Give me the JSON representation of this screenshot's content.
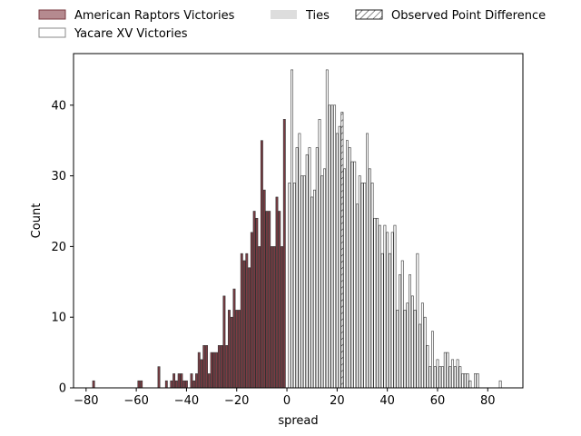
{
  "chart_data": {
    "type": "bar",
    "xlabel": "spread",
    "ylabel": "Count",
    "xlim": [
      -85,
      94
    ],
    "ylim": [
      0,
      47.3
    ],
    "xticks": [
      -80,
      -60,
      -40,
      -20,
      0,
      20,
      40,
      60,
      80
    ],
    "yticks": [
      0,
      10,
      20,
      30,
      40
    ],
    "grid": false,
    "legend_position": "top",
    "colors": {
      "raptors_fill": "#7a3b42",
      "raptors_legend": "#b58a8f",
      "yacare_fill": "#ffffff",
      "bar_edge": "#333333",
      "ties": "#dddddd",
      "observed_edge": "#222222"
    },
    "legend": [
      {
        "label": "American Raptors Victories",
        "style": "raptors"
      },
      {
        "label": "Yacare XV Victories",
        "style": "yacare"
      },
      {
        "label": "Ties",
        "style": "ties"
      },
      {
        "label": "Observed Point Difference",
        "style": "observed"
      }
    ],
    "series": [
      {
        "name": "American Raptors Victories",
        "x": [
          -77,
          -59,
          -58,
          -51,
          -48,
          -46,
          -45,
          -44,
          -43,
          -42,
          -41,
          -40,
          -39,
          -38,
          -37,
          -36,
          -35,
          -34,
          -33,
          -32,
          -31,
          -30,
          -29,
          -28,
          -27,
          -26,
          -25,
          -24,
          -23,
          -22,
          -21,
          -20,
          -19,
          -18,
          -17,
          -16,
          -15,
          -14,
          -13,
          -12,
          -11,
          -10,
          -9,
          -8,
          -7,
          -6,
          -5,
          -4,
          -3,
          -2,
          -1
        ],
        "values": [
          1,
          1,
          1,
          3,
          1,
          1,
          2,
          1,
          2,
          2,
          1,
          1,
          0,
          2,
          1,
          2,
          5,
          4,
          6,
          6,
          2,
          5,
          5,
          5,
          6,
          6,
          13,
          6,
          11,
          10,
          14,
          11,
          11,
          19,
          18,
          19,
          17,
          22,
          25,
          24,
          20,
          35,
          28,
          25,
          25,
          20,
          20,
          27,
          25,
          20,
          38
        ]
      },
      {
        "name": "Yacare XV Victories",
        "x": [
          1,
          2,
          3,
          4,
          5,
          6,
          7,
          8,
          9,
          10,
          11,
          12,
          13,
          14,
          15,
          16,
          17,
          18,
          19,
          20,
          21,
          23,
          24,
          25,
          26,
          27,
          28,
          29,
          30,
          31,
          32,
          33,
          34,
          35,
          36,
          37,
          38,
          39,
          40,
          41,
          42,
          43,
          44,
          45,
          46,
          47,
          48,
          49,
          50,
          51,
          52,
          53,
          54,
          55,
          56,
          57,
          58,
          59,
          60,
          61,
          62,
          63,
          64,
          65,
          66,
          67,
          68,
          69,
          70,
          71,
          72,
          73,
          75,
          76,
          85
        ],
        "values": [
          29,
          45,
          29,
          34,
          36,
          30,
          30,
          33,
          34,
          27,
          28,
          34,
          38,
          30,
          31,
          45,
          40,
          40,
          40,
          36,
          37,
          31,
          35,
          34,
          32,
          32,
          26,
          30,
          29,
          29,
          36,
          31,
          29,
          24,
          24,
          23,
          19,
          23,
          22,
          19,
          22,
          23,
          11,
          16,
          18,
          11,
          12,
          16,
          13,
          11,
          19,
          9,
          12,
          10,
          6,
          3,
          8,
          3,
          4,
          3,
          3,
          5,
          5,
          3,
          4,
          3,
          4,
          3,
          2,
          2,
          2,
          1,
          2,
          2,
          1
        ]
      },
      {
        "name": "Observed Point Difference",
        "x": [
          22
        ],
        "values": [
          39
        ]
      }
    ]
  }
}
